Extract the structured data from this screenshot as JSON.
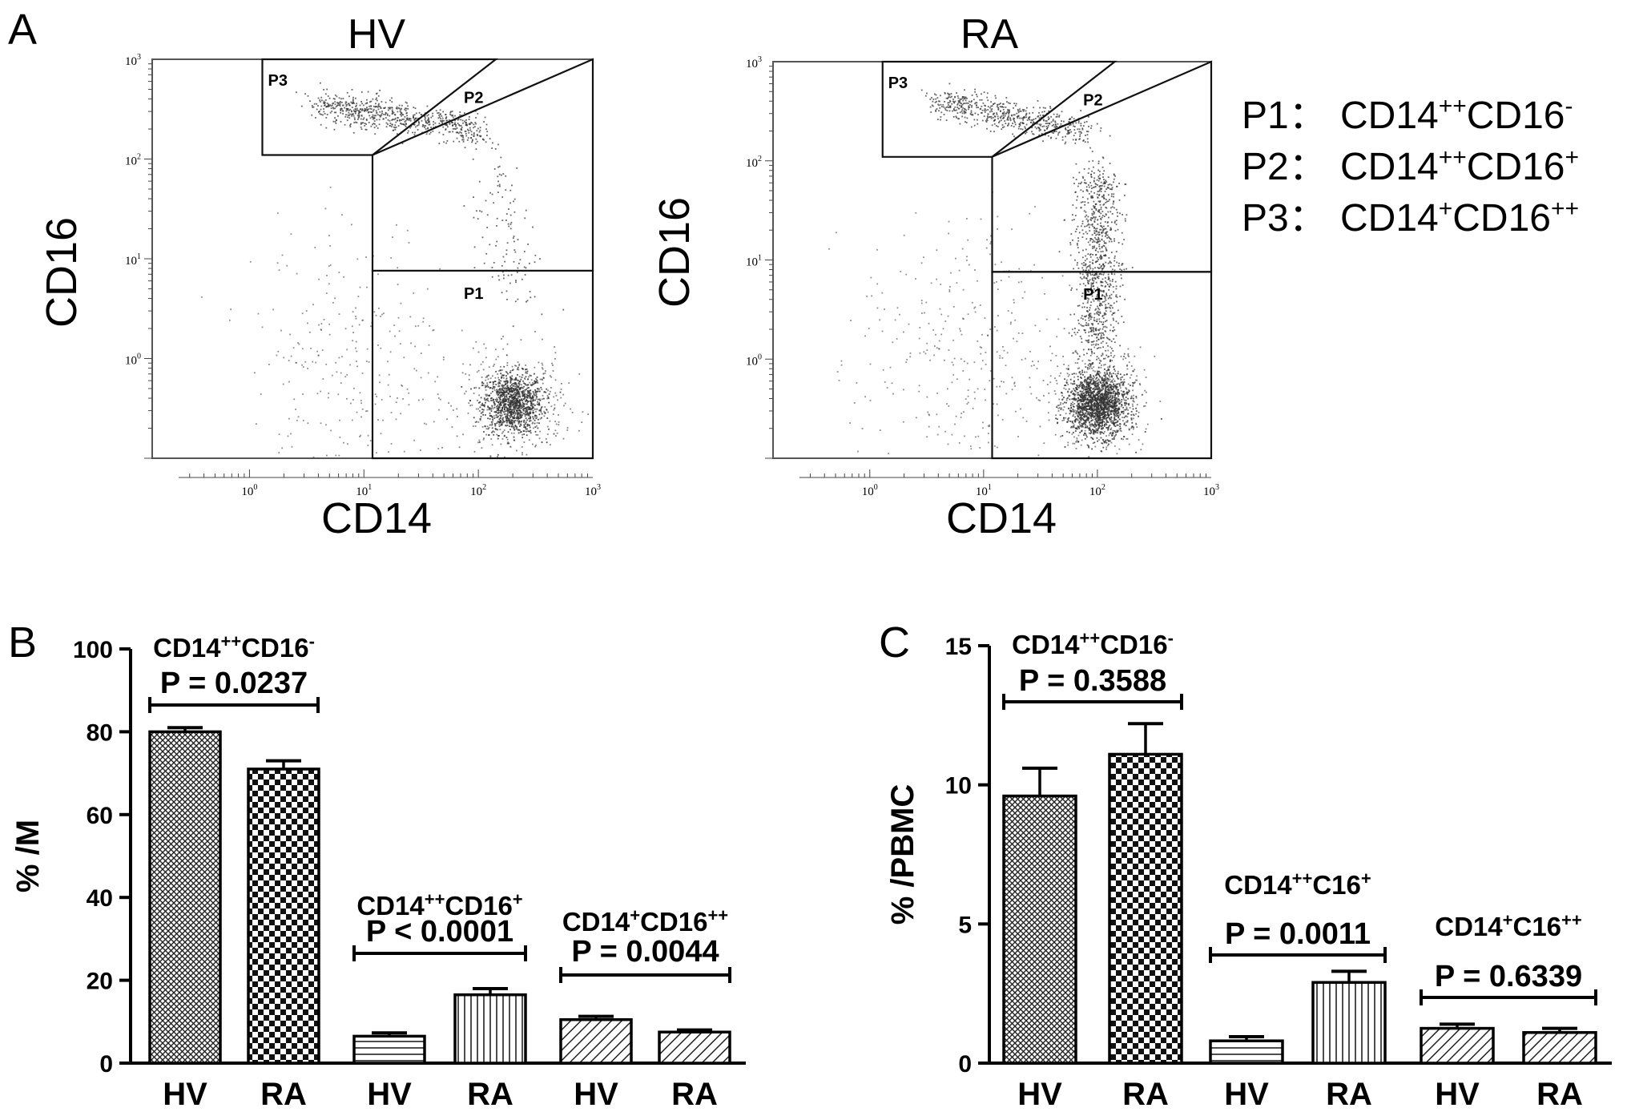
{
  "panels": {
    "a": "A",
    "b": "B",
    "c": "C"
  },
  "facs": [
    {
      "title": "HV",
      "xlabel": "CD14",
      "ylabel": "CD16",
      "x_ticks": [
        {
          "base": "10",
          "exp": "0"
        },
        {
          "base": "10",
          "exp": "1"
        },
        {
          "base": "10",
          "exp": "2"
        },
        {
          "base": "10",
          "exp": "3"
        }
      ],
      "y_ticks": [
        {
          "base": "10",
          "exp": "0"
        },
        {
          "base": "10",
          "exp": "1"
        },
        {
          "base": "10",
          "exp": "2"
        },
        {
          "base": "10",
          "exp": "3"
        }
      ],
      "gates": [
        "P1",
        "P2",
        "P3"
      ]
    },
    {
      "title": "RA",
      "xlabel": "CD14",
      "ylabel": "CD16",
      "x_ticks": [
        {
          "base": "10",
          "exp": "0"
        },
        {
          "base": "10",
          "exp": "1"
        },
        {
          "base": "10",
          "exp": "2"
        },
        {
          "base": "10",
          "exp": "3"
        }
      ],
      "y_ticks": [
        {
          "base": "10",
          "exp": "0"
        },
        {
          "base": "10",
          "exp": "1"
        },
        {
          "base": "10",
          "exp": "2"
        },
        {
          "base": "10",
          "exp": "3"
        }
      ],
      "gates": [
        "P1",
        "P2",
        "P3"
      ]
    }
  ],
  "legend": [
    {
      "gate": "P1：",
      "cd14": "CD14",
      "cd14_sup": "++",
      "cd16": "CD16",
      "cd16_sup": "-"
    },
    {
      "gate": "P2：",
      "cd14": "CD14",
      "cd14_sup": "++",
      "cd16": "CD16",
      "cd16_sup": "+"
    },
    {
      "gate": "P3：",
      "cd14": "CD14",
      "cd14_sup": "+",
      "cd16": "CD16",
      "cd16_sup": "++"
    }
  ],
  "chart_data": [
    {
      "type": "bar",
      "panel": "B",
      "ylabel": "% /M",
      "ylim": [
        0,
        100
      ],
      "yticks": [
        0,
        20,
        40,
        60,
        80,
        100
      ],
      "categories": [
        "HV",
        "RA",
        "HV",
        "RA",
        "HV",
        "RA"
      ],
      "values": [
        80,
        71,
        6.5,
        16.5,
        10.5,
        7.5
      ],
      "errors": [
        1.0,
        2.0,
        0.8,
        1.5,
        0.8,
        0.5
      ],
      "patterns": [
        "cross",
        "check",
        "hstripe",
        "vstripe",
        "diag",
        "diag"
      ],
      "groups": [
        {
          "label": "CD14",
          "sup1": "++",
          "mid": "CD16",
          "sup2": "-",
          "p": "P = 0.0237"
        },
        {
          "label": "CD14",
          "sup1": "++",
          "mid": "CD16",
          "sup2": "+",
          "p": "P < 0.0001"
        },
        {
          "label": "CD14",
          "sup1": "+",
          "mid": "CD16",
          "sup2": "++",
          "p": "P = 0.0044"
        }
      ]
    },
    {
      "type": "bar",
      "panel": "C",
      "ylabel": "% /PBMC",
      "ylim": [
        0,
        15
      ],
      "yticks": [
        0,
        5,
        10,
        15
      ],
      "categories": [
        "HV",
        "RA",
        "HV",
        "RA",
        "HV",
        "RA"
      ],
      "values": [
        9.6,
        11.1,
        0.8,
        2.9,
        1.25,
        1.1
      ],
      "errors": [
        1.0,
        1.1,
        0.15,
        0.4,
        0.15,
        0.15
      ],
      "patterns": [
        "cross",
        "check",
        "hstripe",
        "vstripe",
        "diag",
        "diag"
      ],
      "groups": [
        {
          "label": "CD14",
          "sup1": "++",
          "mid": "CD16",
          "sup2": "-",
          "p": "P = 0.3588"
        },
        {
          "label": "CD14",
          "sup1": "++",
          "mid": "C16",
          "sup2": "+",
          "p": "P = 0.0011"
        },
        {
          "label": "CD14",
          "sup1": "+",
          "mid": "C16",
          "sup2": "++",
          "p": "P = 0.6339"
        }
      ]
    }
  ]
}
